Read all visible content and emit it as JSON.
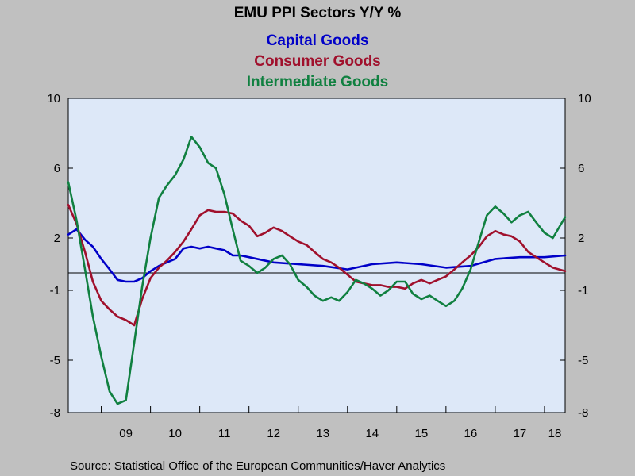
{
  "chart_data": {
    "type": "line",
    "title": "EMU PPI Sectors Y/Y %",
    "source": "Source:  Statistical Office of the European Communities/Haver Analytics",
    "x_ticks": [
      "09",
      "10",
      "11",
      "12",
      "13",
      "14",
      "15",
      "16",
      "17",
      "18"
    ],
    "y_ticks": [
      10,
      6,
      2,
      -1,
      -5,
      -8
    ],
    "y_tick_labels": [
      "10",
      "6",
      "2",
      "-1",
      "-5",
      "-8"
    ],
    "ylim": [
      -8,
      10
    ],
    "xlim": [
      2008.33,
      2018.42
    ],
    "zero_line": 0,
    "grid": false,
    "plot_background": "#dde8f8",
    "series": [
      {
        "name": "Capital Goods",
        "color": "#0000c8",
        "x": [
          2008.33,
          2008.5,
          2008.67,
          2008.83,
          2009.0,
          2009.17,
          2009.33,
          2009.5,
          2009.67,
          2009.83,
          2010.0,
          2010.17,
          2010.33,
          2010.5,
          2010.67,
          2010.83,
          2011.0,
          2011.17,
          2011.33,
          2011.5,
          2011.67,
          2011.83,
          2012.0,
          2012.5,
          2013.0,
          2013.5,
          2014.0,
          2014.5,
          2015.0,
          2015.5,
          2016.0,
          2016.5,
          2017.0,
          2017.5,
          2018.0,
          2018.42
        ],
        "values": [
          2.2,
          2.5,
          1.9,
          1.5,
          0.8,
          0.2,
          -0.4,
          -0.5,
          -0.5,
          -0.3,
          0.1,
          0.4,
          0.6,
          0.8,
          1.4,
          1.5,
          1.4,
          1.5,
          1.4,
          1.3,
          1.0,
          1.0,
          0.9,
          0.6,
          0.5,
          0.4,
          0.2,
          0.5,
          0.6,
          0.5,
          0.3,
          0.4,
          0.8,
          0.9,
          0.9,
          1.0
        ]
      },
      {
        "name": "Consumer Goods",
        "color": "#a0102c",
        "x": [
          2008.33,
          2008.5,
          2008.67,
          2008.83,
          2009.0,
          2009.17,
          2009.33,
          2009.5,
          2009.67,
          2009.83,
          2010.0,
          2010.17,
          2010.33,
          2010.5,
          2010.67,
          2010.83,
          2011.0,
          2011.17,
          2011.33,
          2011.5,
          2011.67,
          2011.83,
          2012.0,
          2012.17,
          2012.33,
          2012.5,
          2012.67,
          2012.83,
          2013.0,
          2013.17,
          2013.33,
          2013.5,
          2013.67,
          2013.83,
          2014.0,
          2014.17,
          2014.33,
          2014.5,
          2014.67,
          2014.83,
          2015.0,
          2015.17,
          2015.33,
          2015.5,
          2015.67,
          2015.83,
          2016.0,
          2016.17,
          2016.33,
          2016.5,
          2016.67,
          2016.83,
          2017.0,
          2017.17,
          2017.33,
          2017.5,
          2017.67,
          2017.83,
          2018.0,
          2018.17,
          2018.42
        ],
        "values": [
          3.9,
          2.8,
          1.2,
          -0.5,
          -1.6,
          -2.1,
          -2.5,
          -2.7,
          -3.0,
          -1.5,
          -0.3,
          0.3,
          0.7,
          1.2,
          1.8,
          2.5,
          3.3,
          3.6,
          3.5,
          3.5,
          3.4,
          3.0,
          2.7,
          2.1,
          2.3,
          2.6,
          2.4,
          2.1,
          1.8,
          1.6,
          1.2,
          0.8,
          0.6,
          0.3,
          -0.1,
          -0.5,
          -0.6,
          -0.7,
          -0.7,
          -0.8,
          -0.8,
          -0.9,
          -0.6,
          -0.4,
          -0.6,
          -0.4,
          -0.2,
          0.2,
          0.6,
          1.0,
          1.5,
          2.1,
          2.4,
          2.2,
          2.1,
          1.8,
          1.2,
          0.9,
          0.6,
          0.3,
          0.1
        ]
      },
      {
        "name": "Intermediate Goods",
        "color": "#108040",
        "x": [
          2008.33,
          2008.5,
          2008.67,
          2008.83,
          2009.0,
          2009.17,
          2009.33,
          2009.5,
          2009.67,
          2009.83,
          2010.0,
          2010.17,
          2010.33,
          2010.5,
          2010.67,
          2010.83,
          2011.0,
          2011.17,
          2011.33,
          2011.5,
          2011.67,
          2011.83,
          2012.0,
          2012.17,
          2012.33,
          2012.5,
          2012.67,
          2012.83,
          2013.0,
          2013.17,
          2013.33,
          2013.5,
          2013.67,
          2013.83,
          2014.0,
          2014.17,
          2014.33,
          2014.5,
          2014.67,
          2014.83,
          2015.0,
          2015.17,
          2015.33,
          2015.5,
          2015.67,
          2015.83,
          2016.0,
          2016.17,
          2016.33,
          2016.5,
          2016.67,
          2016.83,
          2017.0,
          2017.17,
          2017.33,
          2017.5,
          2017.67,
          2017.83,
          2018.0,
          2018.17,
          2018.42
        ],
        "values": [
          5.2,
          3.0,
          0.2,
          -2.5,
          -4.8,
          -6.8,
          -7.5,
          -7.3,
          -4.0,
          -0.8,
          2.0,
          4.3,
          5.0,
          5.6,
          6.5,
          7.8,
          7.2,
          6.3,
          6.0,
          4.5,
          2.5,
          0.7,
          0.4,
          0.0,
          0.3,
          0.8,
          1.0,
          0.5,
          -0.4,
          -0.8,
          -1.3,
          -1.6,
          -1.4,
          -1.6,
          -1.1,
          -0.4,
          -0.6,
          -0.9,
          -1.3,
          -1.0,
          -0.5,
          -0.5,
          -1.2,
          -1.5,
          -1.3,
          -1.6,
          -1.9,
          -1.6,
          -0.9,
          0.2,
          1.8,
          3.3,
          3.8,
          3.4,
          2.9,
          3.3,
          3.5,
          2.9,
          2.3,
          2.0,
          3.2
        ]
      }
    ]
  }
}
